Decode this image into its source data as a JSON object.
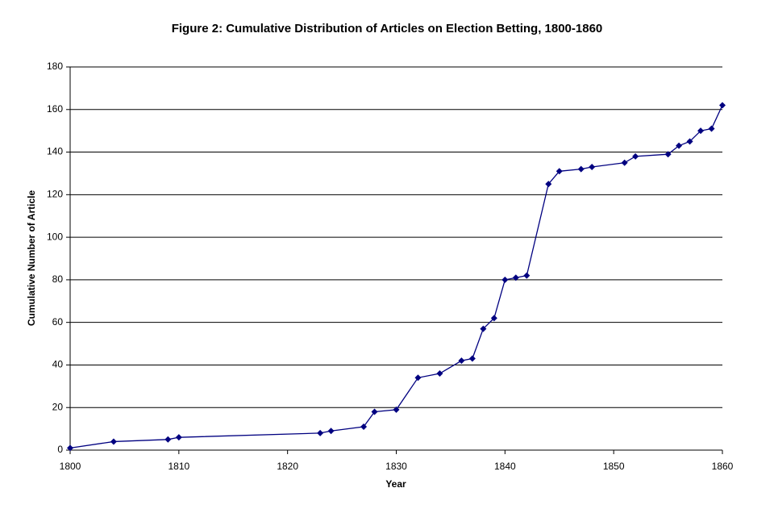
{
  "chart_data": {
    "type": "line",
    "title": "Figure 2: Cumulative Distribution of Articles on Election Betting, 1800-1860",
    "x_label": "Year",
    "y_label": "Cumulative Number of Article",
    "x": [
      1800,
      1804,
      1809,
      1810,
      1823,
      1824,
      1827,
      1828,
      1830,
      1832,
      1834,
      1836,
      1837,
      1838,
      1839,
      1840,
      1841,
      1842,
      1844,
      1845,
      1847,
      1848,
      1851,
      1852,
      1855,
      1856,
      1857,
      1858,
      1859,
      1860
    ],
    "series": [
      {
        "name": "Articles",
        "color": "#000080",
        "values": [
          1,
          4,
          5,
          6,
          8,
          9,
          11,
          18,
          19,
          34,
          36,
          42,
          43,
          57,
          62,
          80,
          81,
          82,
          125,
          131,
          132,
          133,
          135,
          138,
          139,
          143,
          145,
          150,
          151,
          162
        ]
      }
    ],
    "xlim": [
      1800,
      1860
    ],
    "xticks": [
      1800,
      1810,
      1820,
      1830,
      1840,
      1850,
      1860
    ],
    "ylim": [
      0,
      180
    ],
    "yticks": [
      0,
      20,
      40,
      60,
      80,
      100,
      120,
      140,
      160,
      180
    ],
    "grid": true,
    "legend": false
  }
}
